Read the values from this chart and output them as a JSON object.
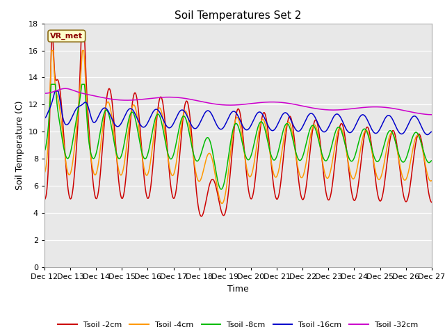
{
  "title": "Soil Temperatures Set 2",
  "xlabel": "Time",
  "ylabel": "Soil Temperature (C)",
  "annotation": "VR_met",
  "ylim": [
    0,
    18
  ],
  "yticks": [
    0,
    2,
    4,
    6,
    8,
    10,
    12,
    14,
    16,
    18
  ],
  "xtick_labels": [
    "Dec 12",
    "Dec 13",
    "Dec 14",
    "Dec 15",
    "Dec 16",
    "Dec 17",
    "Dec 18",
    "Dec 19",
    "Dec 20",
    "Dec 21",
    "Dec 22",
    "Dec 23",
    "Dec 24",
    "Dec 25",
    "Dec 26",
    "Dec 27"
  ],
  "colors": {
    "Tsoil -2cm": "#cc0000",
    "Tsoil -4cm": "#ff9900",
    "Tsoil -8cm": "#00bb00",
    "Tsoil -16cm": "#0000cc",
    "Tsoil -32cm": "#cc00cc"
  },
  "bg_color": "#e8e8e8",
  "title_fontsize": 11,
  "label_fontsize": 9,
  "tick_fontsize": 8
}
